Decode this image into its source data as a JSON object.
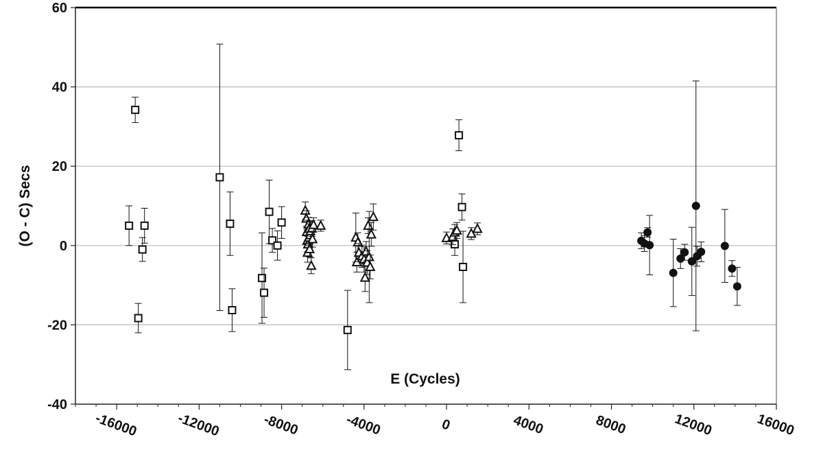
{
  "chart_data": {
    "type": "scatter",
    "title": "",
    "xlabel": "E (Cycles)",
    "ylabel": "(O - C) Secs",
    "xlim": [
      -18000,
      16000
    ],
    "ylim": [
      -40,
      60
    ],
    "xticks": [
      -16000,
      -12000,
      -8000,
      -4000,
      0,
      4000,
      8000,
      12000,
      16000
    ],
    "xtick_labels": [
      "-16000",
      "-12000",
      "-8000",
      "-4000",
      "0",
      "4000",
      "8000",
      "12000",
      "16000"
    ],
    "yticks": [
      -40,
      -20,
      0,
      20,
      40,
      60
    ],
    "ytick_labels": [
      "-40",
      "-20",
      "0",
      "20",
      "40",
      "60"
    ],
    "grid": "horizontal",
    "legend": "none",
    "series": [
      {
        "marker": "square-open",
        "points": [
          {
            "x": -15400,
            "y": 5.0,
            "err": 5.0
          },
          {
            "x": -15100,
            "y": 34.2,
            "err": 3.2
          },
          {
            "x": -14950,
            "y": -18.3,
            "err": 3.7
          },
          {
            "x": -14750,
            "y": -1.0,
            "err": 3.0
          },
          {
            "x": -14650,
            "y": 5.0,
            "err": 4.4
          },
          {
            "x": -11000,
            "y": 17.2,
            "err": 33.6
          },
          {
            "x": -10500,
            "y": 5.5,
            "err": 8.0
          },
          {
            "x": -10400,
            "y": -16.3,
            "err": 5.4
          },
          {
            "x": -8950,
            "y": -8.2,
            "err": 11.4
          },
          {
            "x": -8850,
            "y": -11.9,
            "err": 6.2
          },
          {
            "x": -8600,
            "y": 8.5,
            "err": 8.0
          },
          {
            "x": -8450,
            "y": 1.3,
            "err": 3.0
          },
          {
            "x": -8200,
            "y": 0.0,
            "err": 3.7
          },
          {
            "x": -8000,
            "y": 5.8,
            "err": 4.0
          },
          {
            "x": -4800,
            "y": -21.3,
            "err": 10.0
          },
          {
            "x": 400,
            "y": 0.3,
            "err": 2.8
          },
          {
            "x": 600,
            "y": 27.8,
            "err": 3.9
          },
          {
            "x": 750,
            "y": 9.7,
            "err": 3.3
          },
          {
            "x": 800,
            "y": -5.4,
            "err": 9.0
          }
        ]
      },
      {
        "marker": "triangle-open",
        "points": [
          {
            "x": -6850,
            "y": 8.8,
            "err": 2.2
          },
          {
            "x": -6800,
            "y": 6.8,
            "err": 2.0
          },
          {
            "x": -6780,
            "y": 3.4,
            "err": 3.0
          },
          {
            "x": -6760,
            "y": 1.2,
            "err": 2.8
          },
          {
            "x": -6740,
            "y": -1.8,
            "err": 2.4
          },
          {
            "x": -6720,
            "y": 0.3,
            "err": 2.0
          },
          {
            "x": -6700,
            "y": 5.3,
            "err": 1.8
          },
          {
            "x": -6680,
            "y": 2.0,
            "err": 2.0
          },
          {
            "x": -6660,
            "y": 4.2,
            "err": 1.8
          },
          {
            "x": -6640,
            "y": -0.9,
            "err": 2.0
          },
          {
            "x": -6620,
            "y": 2.6,
            "err": 2.2
          },
          {
            "x": -6600,
            "y": 3.6,
            "err": 1.8
          },
          {
            "x": -6560,
            "y": -5.1,
            "err": 2.0
          },
          {
            "x": -6530,
            "y": 4.3,
            "err": 2.0
          },
          {
            "x": -6500,
            "y": 1.6,
            "err": 2.0
          },
          {
            "x": -6450,
            "y": 5.2,
            "err": 1.8
          },
          {
            "x": -6100,
            "y": 5.0,
            "err": 1.4
          },
          {
            "x": -4400,
            "y": 2.0,
            "err": 6.2
          },
          {
            "x": -4350,
            "y": -4.2,
            "err": 2.5
          },
          {
            "x": -4300,
            "y": 0.8,
            "err": 2.4
          },
          {
            "x": -4250,
            "y": -1.8,
            "err": 2.3
          },
          {
            "x": -4100,
            "y": -2.7,
            "err": 2.8
          },
          {
            "x": -4000,
            "y": -3.5,
            "err": 3.2
          },
          {
            "x": -3950,
            "y": -8.1,
            "err": 3.5
          },
          {
            "x": -3900,
            "y": -1.5,
            "err": 2.5
          },
          {
            "x": -3850,
            "y": -4.3,
            "err": 3.0
          },
          {
            "x": -3800,
            "y": 5.0,
            "err": 2.0
          },
          {
            "x": -3750,
            "y": -2.9,
            "err": 11.5
          },
          {
            "x": -3700,
            "y": -5.4,
            "err": 3.0
          },
          {
            "x": -3650,
            "y": 2.8,
            "err": 3.0
          },
          {
            "x": -3550,
            "y": 7.2,
            "err": 3.3
          },
          {
            "x": 0,
            "y": 1.9,
            "err": 1.5
          },
          {
            "x": 300,
            "y": 2.2,
            "err": 2.0
          },
          {
            "x": 400,
            "y": 3.3,
            "err": 2.0
          },
          {
            "x": 500,
            "y": 3.8,
            "err": 2.0
          },
          {
            "x": 1200,
            "y": 3.0,
            "err": 1.5
          },
          {
            "x": 1500,
            "y": 4.2,
            "err": 1.5
          }
        ]
      },
      {
        "marker": "circle-filled",
        "points": [
          {
            "x": 9450,
            "y": 1.2,
            "err": 2.0
          },
          {
            "x": 9600,
            "y": 0.5,
            "err": 2.0
          },
          {
            "x": 9750,
            "y": 3.3,
            "err": 1.2
          },
          {
            "x": 9850,
            "y": 0.1,
            "err": 7.5
          },
          {
            "x": 11000,
            "y": -6.9,
            "err": 8.5
          },
          {
            "x": 11350,
            "y": -3.3,
            "err": 2.5
          },
          {
            "x": 11550,
            "y": -1.7,
            "err": 2.0
          },
          {
            "x": 11900,
            "y": -4.0,
            "err": 8.6
          },
          {
            "x": 12100,
            "y": 10.0,
            "err": 31.5
          },
          {
            "x": 12150,
            "y": -2.7,
            "err": 2.5
          },
          {
            "x": 12350,
            "y": -1.6,
            "err": 2.5
          },
          {
            "x": 13500,
            "y": -0.1,
            "err": 9.2
          },
          {
            "x": 13850,
            "y": -5.8,
            "err": 2.0
          },
          {
            "x": 14100,
            "y": -10.3,
            "err": 4.8
          }
        ]
      }
    ]
  }
}
